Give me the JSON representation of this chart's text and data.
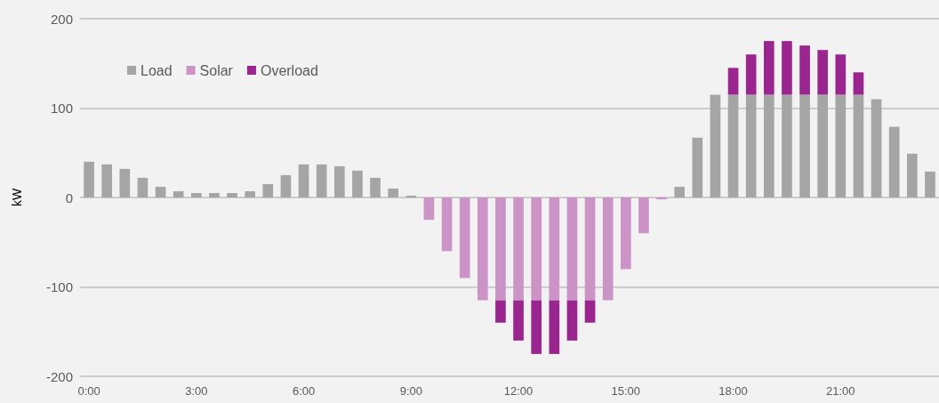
{
  "chart_data": {
    "type": "bar",
    "stacked": true,
    "ylabel": "kW",
    "categories": [
      "0:00",
      null,
      null,
      null,
      null,
      null,
      "3:00",
      null,
      null,
      null,
      null,
      null,
      "6:00",
      null,
      null,
      null,
      null,
      null,
      "9:00",
      null,
      null,
      null,
      null,
      null,
      "12:00",
      null,
      null,
      null,
      null,
      null,
      "15:00",
      null,
      null,
      null,
      null,
      null,
      "18:00",
      null,
      null,
      null,
      null,
      null,
      "21:00",
      null,
      null,
      null,
      null,
      null
    ],
    "series": [
      {
        "name": "Load",
        "color": "#a5a5a5",
        "values": [
          40,
          37,
          32,
          22,
          12,
          7,
          5,
          5,
          5,
          7,
          15,
          25,
          37,
          37,
          35,
          30,
          22,
          10,
          2,
          null,
          null,
          null,
          null,
          null,
          null,
          null,
          null,
          null,
          null,
          null,
          null,
          null,
          null,
          12,
          67,
          115,
          115,
          115,
          115,
          115,
          115,
          115,
          115,
          115,
          110,
          79,
          49,
          29
        ]
      },
      {
        "name": "Solar",
        "color": "#cc93c6",
        "values": [
          null,
          null,
          null,
          null,
          null,
          null,
          null,
          null,
          null,
          null,
          null,
          null,
          null,
          null,
          null,
          null,
          null,
          null,
          null,
          -25,
          -60,
          -90,
          -115,
          -115,
          -115,
          -115,
          -115,
          -115,
          -115,
          -115,
          -80,
          -40,
          -2,
          null,
          null,
          null,
          null,
          null,
          null,
          null,
          null,
          null,
          null,
          null,
          null,
          null,
          null,
          null
        ]
      },
      {
        "name": "Overload",
        "color": "#9b258f",
        "values": [
          null,
          null,
          null,
          null,
          null,
          null,
          null,
          null,
          null,
          null,
          null,
          null,
          null,
          null,
          null,
          null,
          null,
          null,
          null,
          null,
          null,
          null,
          null,
          -25,
          -45,
          -60,
          -60,
          -45,
          -25,
          null,
          null,
          null,
          null,
          null,
          null,
          null,
          30,
          45,
          60,
          60,
          55,
          50,
          45,
          25,
          null,
          null,
          null,
          null
        ]
      }
    ],
    "ylim": [
      -200,
      200
    ],
    "yticks": [
      -200,
      -100,
      0,
      100,
      200
    ],
    "grid": "y",
    "legend": "top left"
  }
}
